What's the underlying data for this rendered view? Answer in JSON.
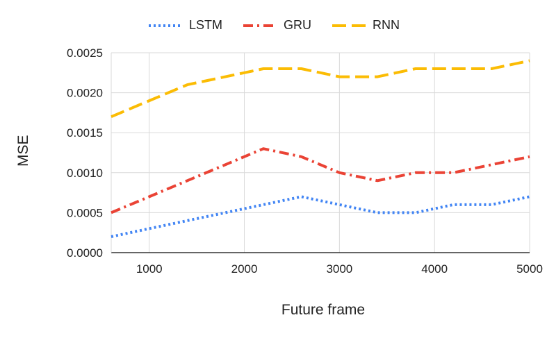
{
  "chart_data": {
    "type": "line",
    "title": "",
    "xlabel": "Future frame",
    "ylabel": "MSE",
    "xlim": [
      600,
      5000
    ],
    "ylim": [
      0,
      0.0025
    ],
    "x_ticks": [
      "1000",
      "2000",
      "3000",
      "4000",
      "5000"
    ],
    "y_ticks": [
      "0.0000",
      "0.0005",
      "0.0010",
      "0.0015",
      "0.0020",
      "0.0025"
    ],
    "x": [
      600,
      1000,
      1400,
      1800,
      2200,
      2600,
      3000,
      3400,
      3800,
      4200,
      4600,
      5000
    ],
    "series": [
      {
        "name": "LSTM",
        "color": "#4285f4",
        "style": "dotted",
        "values": [
          0.0002,
          0.0003,
          0.0004,
          0.0005,
          0.0006,
          0.0007,
          0.0006,
          0.0005,
          0.0005,
          0.0006,
          0.0006,
          0.0007
        ]
      },
      {
        "name": "GRU",
        "color": "#ea4335",
        "style": "dashdot",
        "values": [
          0.0005,
          0.0007,
          0.0009,
          0.0011,
          0.0013,
          0.0012,
          0.001,
          0.0009,
          0.001,
          0.001,
          0.0011,
          0.0012
        ]
      },
      {
        "name": "RNN",
        "color": "#fbbc04",
        "style": "dashed",
        "values": [
          0.0017,
          0.0019,
          0.0021,
          0.0022,
          0.0023,
          0.0023,
          0.0022,
          0.0022,
          0.0023,
          0.0023,
          0.0023,
          0.0024
        ]
      }
    ],
    "grid": true,
    "legend_position": "top-center"
  }
}
